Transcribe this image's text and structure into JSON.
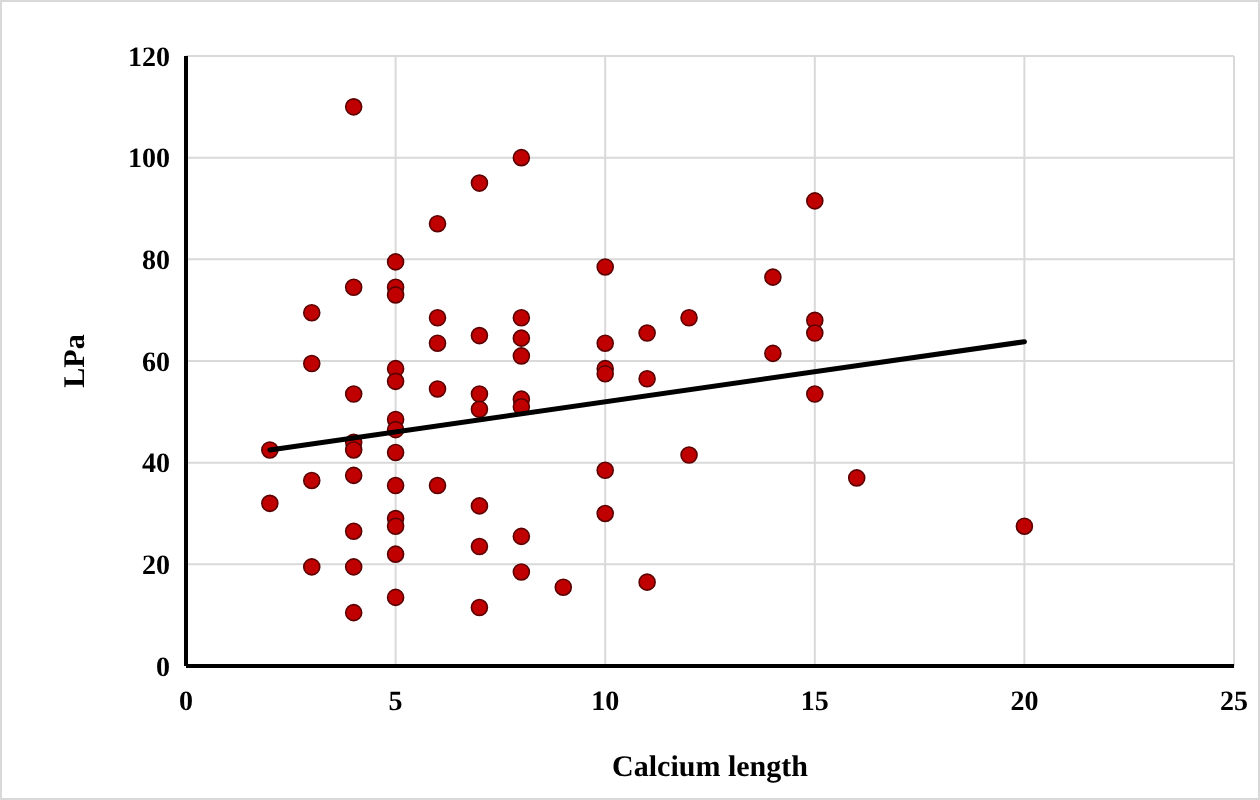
{
  "chart_data": {
    "type": "scatter",
    "xlabel": "Calcium length",
    "ylabel": "LPa",
    "xlim": [
      0,
      25
    ],
    "xticks": [
      0,
      5,
      10,
      15,
      20,
      25
    ],
    "ylim": [
      0,
      120
    ],
    "yticks": [
      0,
      20,
      40,
      60,
      80,
      100,
      120
    ],
    "grid": true,
    "series": [
      {
        "color": "#c00000",
        "marker": "circle",
        "x": [
          2,
          2,
          3,
          3,
          3,
          3,
          4,
          4,
          4,
          4,
          4,
          4,
          4,
          4,
          4,
          5,
          5,
          5,
          5,
          5,
          5,
          5,
          5,
          5,
          5,
          5,
          5,
          5,
          6,
          6,
          6,
          6,
          6,
          7,
          7,
          7,
          7,
          7,
          7,
          7,
          8,
          8,
          8,
          8,
          8,
          8,
          8,
          8,
          9,
          10,
          10,
          10,
          10,
          10,
          10,
          11,
          11,
          11,
          12,
          12,
          14,
          14,
          15,
          15,
          15,
          15,
          16,
          20
        ],
        "values": [
          42.5,
          32,
          69.5,
          59.5,
          36.5,
          19.5,
          110,
          74.5,
          53.5,
          44,
          42.5,
          37.5,
          26.5,
          19.5,
          10.5,
          79.5,
          74.5,
          73,
          58.5,
          56,
          48.5,
          46.5,
          42,
          35.5,
          29,
          27.5,
          22,
          13.5,
          87,
          68.5,
          63.5,
          54.5,
          35.5,
          95,
          65,
          53.5,
          50.5,
          31.5,
          23.5,
          11.5,
          100,
          68.5,
          64.5,
          61,
          52.5,
          51,
          25.5,
          18.5,
          15.5,
          78.5,
          63.5,
          58.5,
          57.5,
          38.5,
          30,
          65.5,
          56.5,
          16.5,
          68.5,
          41.5,
          76.5,
          61.5,
          91.5,
          68,
          65.5,
          53.5,
          37,
          27.5
        ]
      },
      {
        "type": "line",
        "color": "#000000",
        "x": [
          2,
          20
        ],
        "values": [
          42.5,
          63.8
        ],
        "marker": "none"
      }
    ]
  }
}
